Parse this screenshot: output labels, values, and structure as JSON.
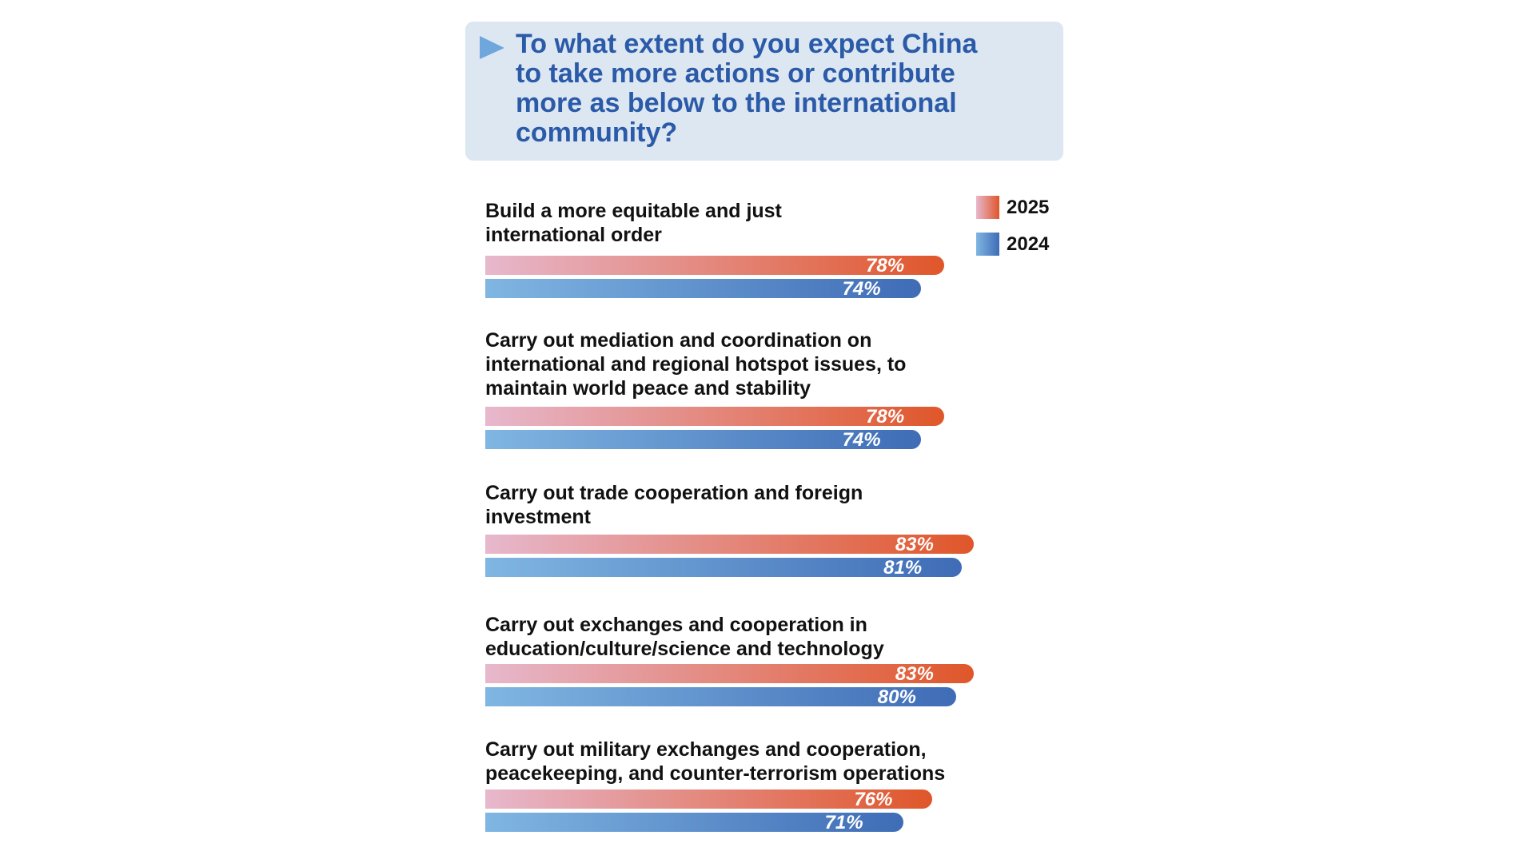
{
  "chart_data": {
    "type": "bar",
    "orientation": "horizontal",
    "title": [
      "To what extent do you expect China",
      "to take more actions or contribute",
      "more as below to the international",
      "community?"
    ],
    "categories": [
      [
        "Build a more equitable and just",
        "international order"
      ],
      [
        "Carry out mediation and coordination on",
        "international and regional hotspot issues, to",
        "maintain world peace and stability"
      ],
      [
        "Carry out trade cooperation and foreign",
        "investment"
      ],
      [
        "Carry out exchanges and cooperation in",
        "education/culture/science and technology"
      ],
      [
        "Carry out military exchanges and cooperation,",
        "peacekeeping, and counter-terrorism operations"
      ]
    ],
    "series": [
      {
        "name": "2025",
        "color": "#e0562a",
        "color_start": "#e7b8cd",
        "values": [
          78,
          78,
          83,
          83,
          76
        ],
        "value_labels": [
          "78%",
          "78%",
          "83%",
          "83%",
          "76%"
        ]
      },
      {
        "name": "2024",
        "color": "#3f6cb6",
        "color_start": "#80b6e2",
        "values": [
          74,
          74,
          81,
          80,
          71
        ],
        "value_labels": [
          "74%",
          "74%",
          "81%",
          "80%",
          "71%"
        ]
      }
    ]
  }
}
